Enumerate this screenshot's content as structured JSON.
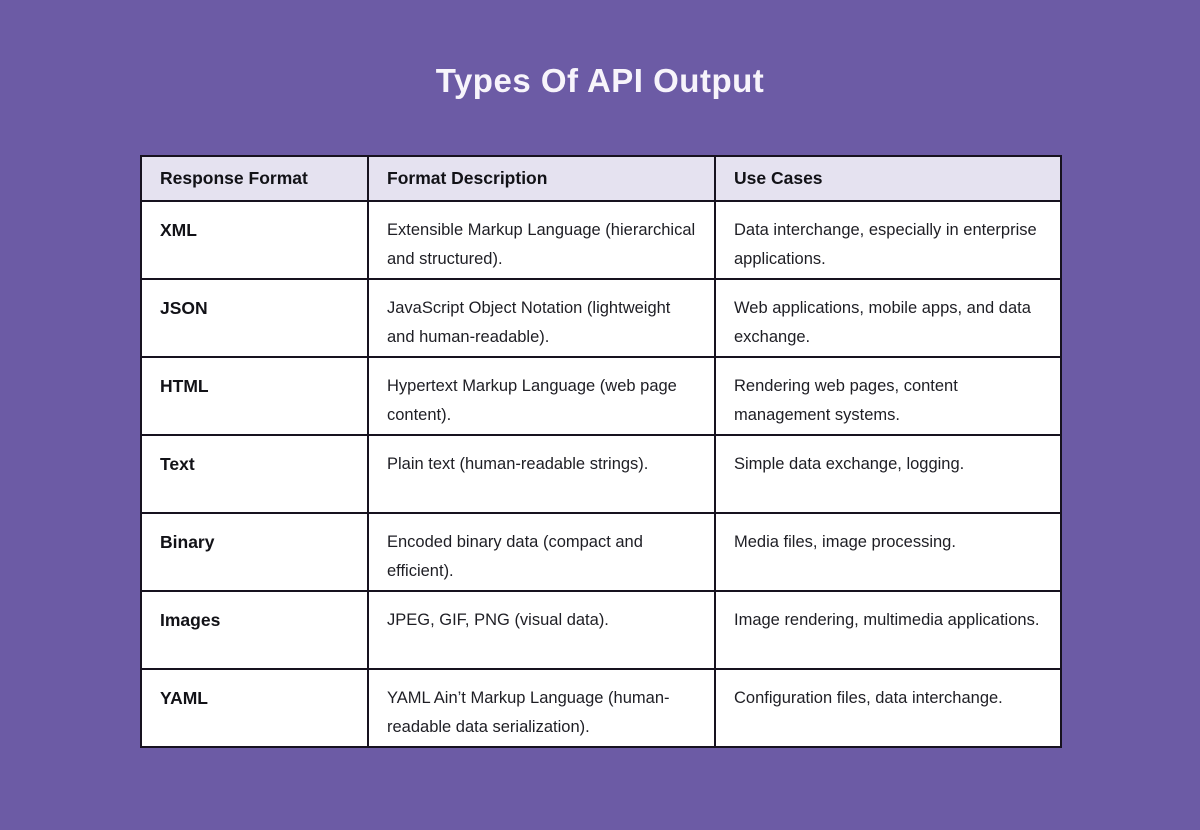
{
  "page": {
    "title": "Types Of API Output",
    "background_color": "#6C5BA5",
    "title_color": "#F7F4FB"
  },
  "table": {
    "border_color": "#17121F",
    "header_bg": "#E5E2F0",
    "row_bg": "#FFFFFF",
    "columns": [
      "Response Format",
      "Format Description",
      "Use Cases"
    ],
    "rows": [
      {
        "format": "XML",
        "description": "Extensible Markup Language (hierarchical and structured).",
        "use_cases": "Data interchange, especially in enterprise applications."
      },
      {
        "format": "JSON",
        "description": "JavaScript Object Notation (lightweight and human-readable).",
        "use_cases": "Web applications, mobile apps, and data exchange."
      },
      {
        "format": "HTML",
        "description": "Hypertext Markup Language (web page content).",
        "use_cases": "Rendering web pages, content management systems."
      },
      {
        "format": "Text",
        "description": "Plain text (human-readable strings).",
        "use_cases": "Simple data exchange, logging."
      },
      {
        "format": "Binary",
        "description": "Encoded binary data (compact and efficient).",
        "use_cases": "Media files, image processing."
      },
      {
        "format": "Images",
        "description": "JPEG, GIF, PNG (visual data).",
        "use_cases": "Image rendering, multimedia applications."
      },
      {
        "format": "YAML",
        "description": "YAML Ain’t Markup Language (human-readable data serialization).",
        "use_cases": "Configuration files, data interchange."
      }
    ]
  }
}
